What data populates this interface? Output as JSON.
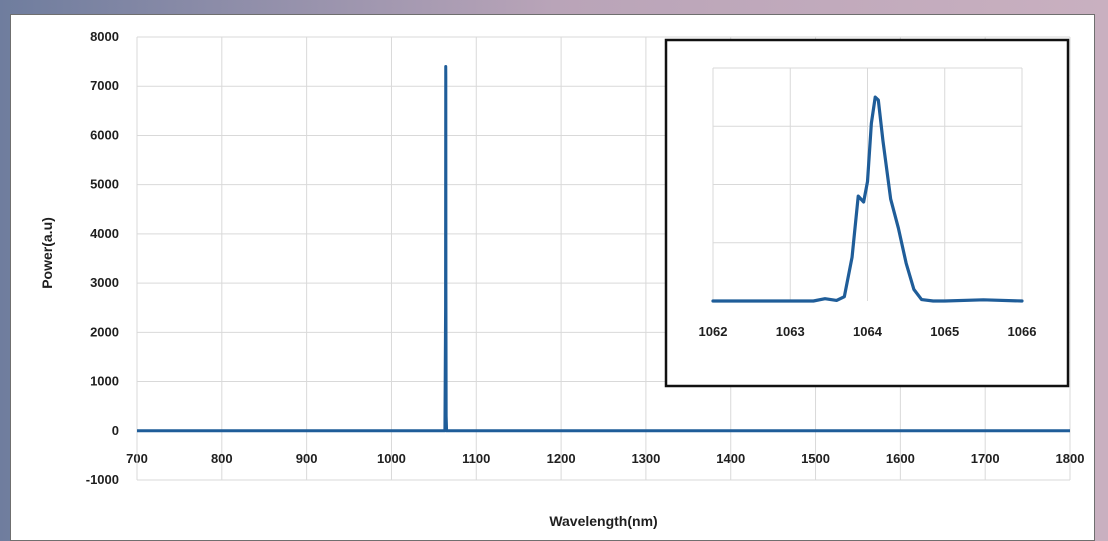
{
  "chart_data": [
    {
      "type": "line",
      "title": "",
      "xlabel": "Wavelength(nm)",
      "ylabel": "Power(a.u)",
      "xlim": [
        700,
        1800
      ],
      "ylim": [
        -1000,
        8000
      ],
      "x_ticks": [
        "700",
        "800",
        "900",
        "1000",
        "1100",
        "1200",
        "1300",
        "1400",
        "1500",
        "1600",
        "1700",
        "1800"
      ],
      "y_ticks": [
        "8000",
        "7000",
        "6000",
        "5000",
        "4000",
        "3000",
        "2000",
        "1000",
        "0",
        "-1000"
      ],
      "grid": true,
      "line_color": "#1f5d99",
      "series": [
        {
          "x": [
            700,
            1062,
            1063,
            1063.8,
            1064,
            1064.1,
            1064.2,
            1064.5,
            1065,
            1066,
            1800
          ],
          "y": [
            0,
            0,
            0,
            2500,
            7400,
            7200,
            3000,
            300,
            0,
            0,
            0
          ]
        }
      ]
    },
    {
      "type": "line",
      "title": "",
      "xlabel": "",
      "ylabel": "",
      "xlim": [
        1062,
        1066
      ],
      "ylim": [
        0,
        8000
      ],
      "x_ticks": [
        "1062",
        "1063",
        "1064",
        "1065",
        "1066"
      ],
      "grid": true,
      "line_color": "#1f5d99",
      "series": [
        {
          "x": [
            1062,
            1062.5,
            1063,
            1063.3,
            1063.45,
            1063.6,
            1063.7,
            1063.8,
            1063.88,
            1063.95,
            1064.0,
            1064.05,
            1064.1,
            1064.14,
            1064.2,
            1064.3,
            1064.4,
            1064.5,
            1064.6,
            1064.7,
            1064.85,
            1065,
            1065.5,
            1066
          ],
          "y": [
            0,
            0,
            0,
            0,
            80,
            20,
            150,
            1500,
            3600,
            3400,
            4100,
            6100,
            7000,
            6900,
            5500,
            3500,
            2500,
            1300,
            400,
            50,
            0,
            0,
            40,
            0
          ]
        }
      ]
    }
  ]
}
